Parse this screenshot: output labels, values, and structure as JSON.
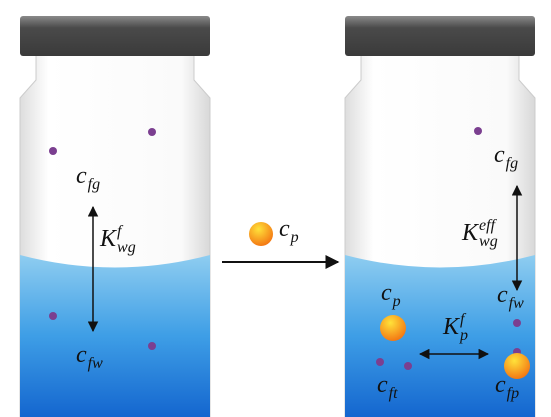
{
  "left_vial": {
    "labels": [
      {
        "base": "c",
        "sub": "fg"
      },
      {
        "base": "K",
        "sub": "wg",
        "sup": "f"
      },
      {
        "base": "c",
        "sub": "fw"
      }
    ]
  },
  "middle": {
    "label": {
      "base": "c",
      "sub": "p"
    }
  },
  "right_vial": {
    "labels": [
      {
        "base": "c",
        "sub": "fg"
      },
      {
        "base": "K",
        "sub": "wg",
        "sup": "eff"
      },
      {
        "base": "c",
        "sub": "fw"
      },
      {
        "base": "c",
        "sub": "p"
      },
      {
        "base": "K",
        "sub": "p",
        "sup": "f"
      },
      {
        "base": "c",
        "sub": "ft"
      },
      {
        "base": "c",
        "sub": "fp"
      }
    ]
  }
}
